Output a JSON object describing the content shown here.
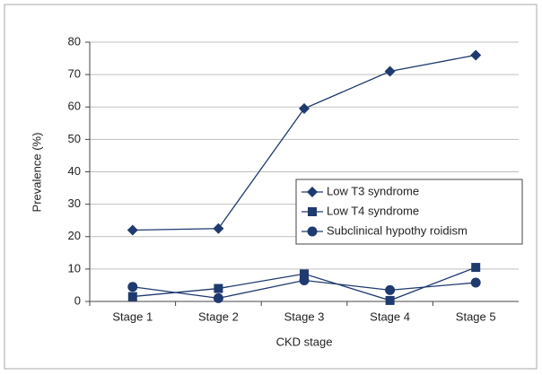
{
  "chart_data": {
    "type": "line",
    "categories": [
      "Stage 1",
      "Stage 2",
      "Stage 3",
      "Stage 4",
      "Stage 5"
    ],
    "series": [
      {
        "name": "Low T3 syndrome",
        "color": "#1f3a6e",
        "marker": "diamond",
        "values": [
          22,
          22.5,
          59.5,
          71,
          76
        ]
      },
      {
        "name": "Low T4 syndrome",
        "color": "#1f3a6e",
        "marker": "square",
        "values": [
          1.5,
          4,
          8.5,
          0.3,
          10.5
        ]
      },
      {
        "name": "Subclinical hypothy roidism",
        "color": "#1f3a6e",
        "marker": "circle",
        "values": [
          4.5,
          1,
          6.5,
          3.5,
          5.8
        ]
      }
    ],
    "x_label": "CKD stage",
    "y_label": "Prevalence (%)",
    "ylim": [
      0,
      80
    ],
    "yticks": [
      0,
      10,
      20,
      30,
      40,
      50,
      60,
      70,
      80
    ],
    "grid": true,
    "legend": "right"
  }
}
